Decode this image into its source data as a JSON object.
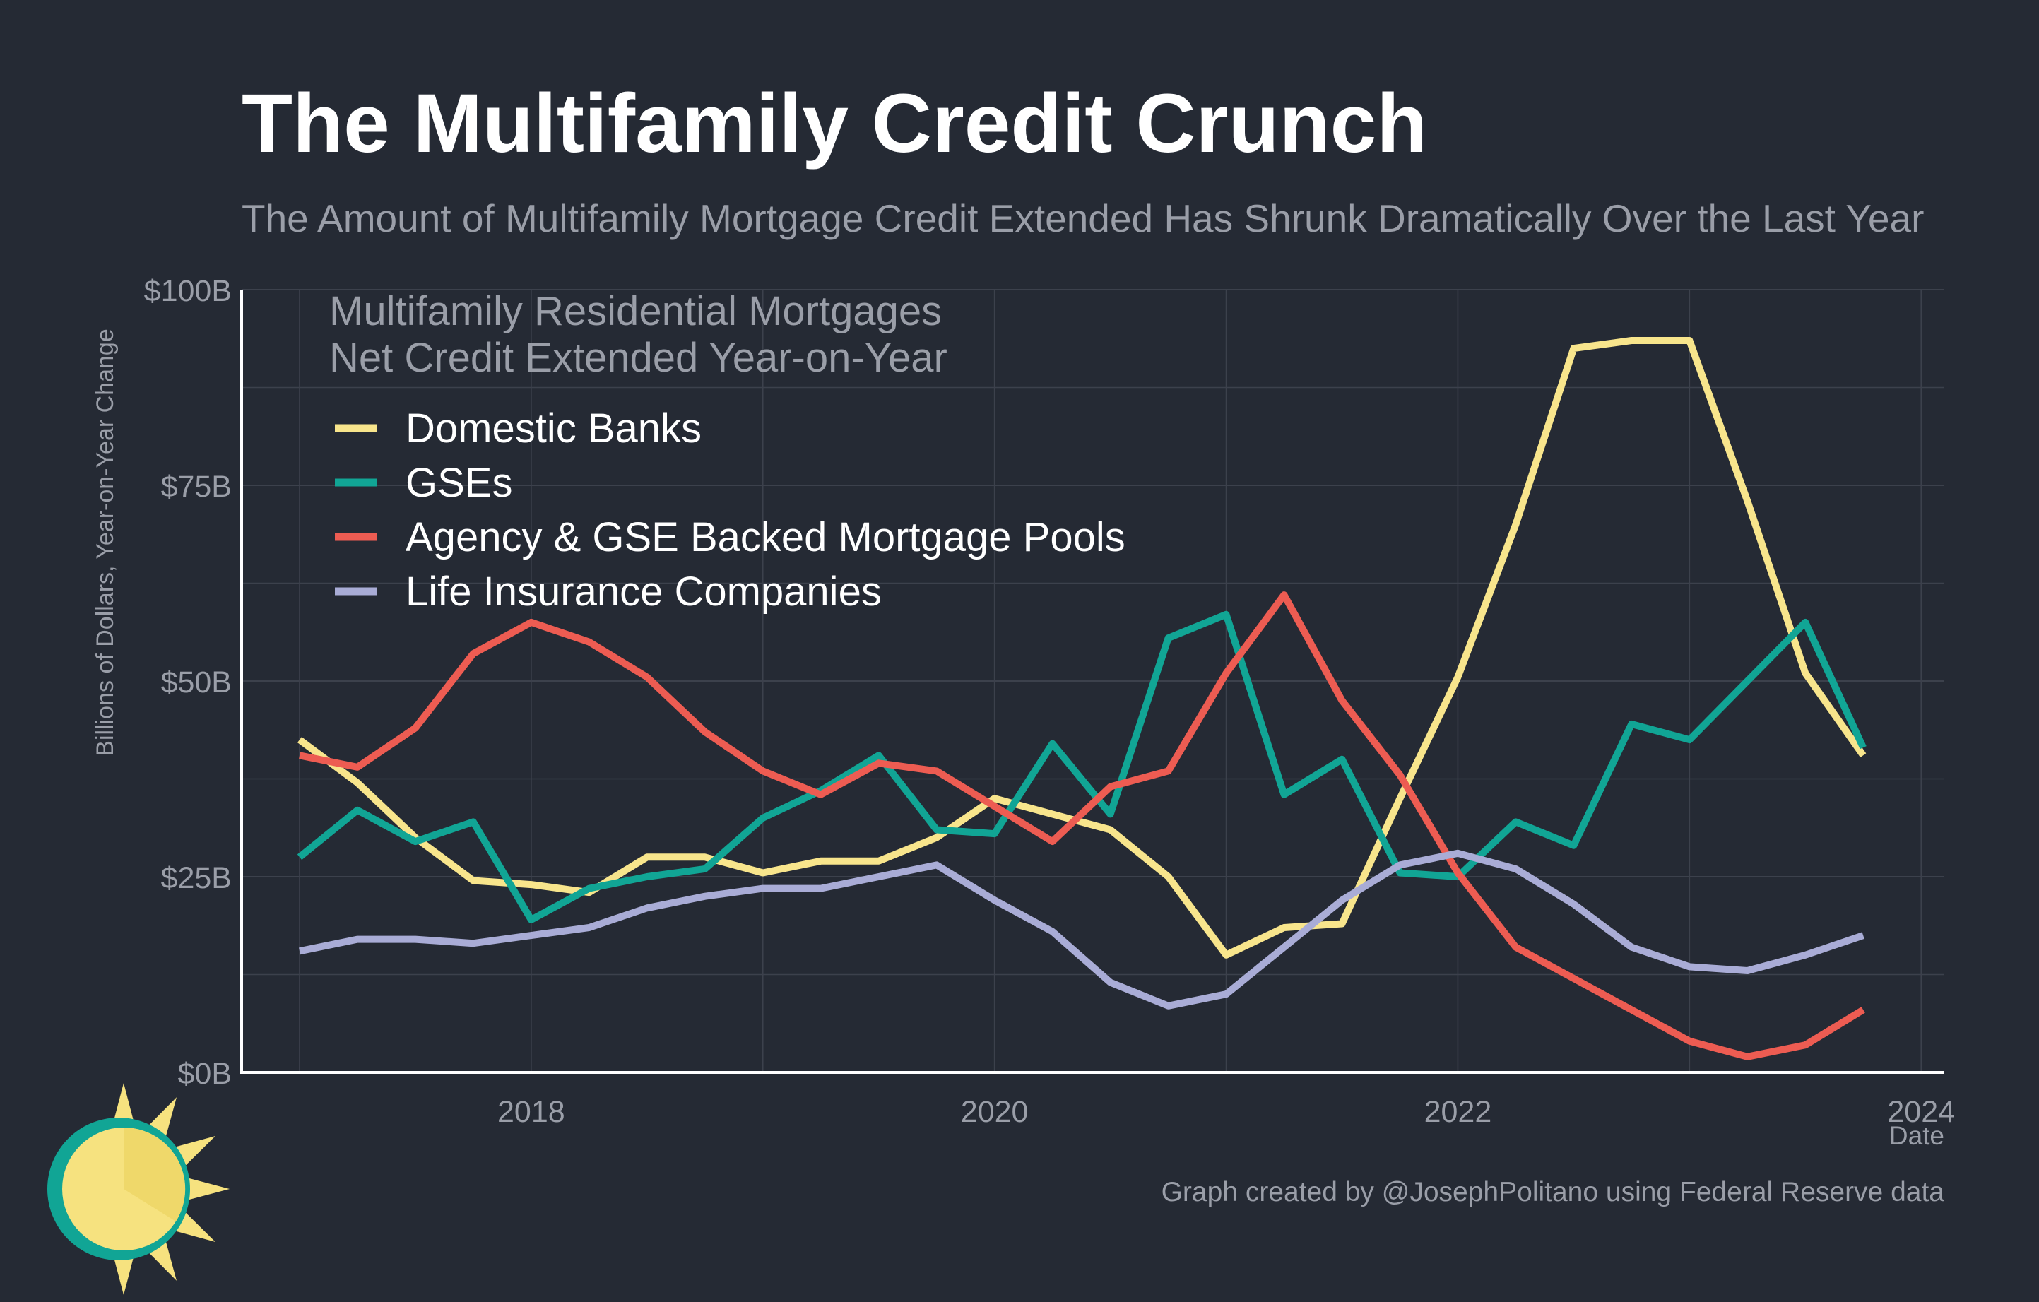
{
  "title": "The Multifamily Credit Crunch",
  "subtitle": "The Amount of Multifamily Mortgage Credit Extended Has Shrunk Dramatically Over the Last Year",
  "caption": "Graph created by @JosephPolitano using Federal Reserve data",
  "colors": {
    "background": "#252a34",
    "grid": "#3c414c",
    "axis": "#ffffff",
    "logo_sun": "#f6e27f",
    "logo_ring": "#11a595"
  },
  "chart_data": {
    "type": "line",
    "legend_title": [
      "Multifamily Residential Mortgages",
      "Net Credit Extended Year-on-Year"
    ],
    "legend_position": "top-left",
    "xlabel": "Date",
    "ylabel": "Billions of Dollars, Year-on-Year Change",
    "xlim": [
      2016.75,
      2024.1
    ],
    "ylim": [
      0,
      100
    ],
    "x_ticks": [
      2018,
      2020,
      2022,
      2024
    ],
    "x_tick_labels": [
      "2018",
      "2020",
      "2022",
      "2024"
    ],
    "y_ticks": [
      0,
      25,
      50,
      75,
      100
    ],
    "y_tick_labels": [
      "$0B",
      "$25B",
      "$50B",
      "$75B",
      "$100B"
    ],
    "grid": true,
    "x": [
      2017.0,
      2017.25,
      2017.5,
      2017.75,
      2018.0,
      2018.25,
      2018.5,
      2018.75,
      2019.0,
      2019.25,
      2019.5,
      2019.75,
      2020.0,
      2020.25,
      2020.5,
      2020.75,
      2021.0,
      2021.25,
      2021.5,
      2021.75,
      2022.0,
      2022.25,
      2022.5,
      2022.75,
      2023.0,
      2023.25,
      2023.5,
      2023.75
    ],
    "series": [
      {
        "name": "Domestic Banks",
        "color": "#f8e58c",
        "values": [
          42.5,
          37,
          30,
          24.5,
          24,
          23,
          27.5,
          27.5,
          25.5,
          27,
          27,
          30,
          35,
          33,
          31,
          25,
          15,
          18.5,
          19,
          35,
          50.5,
          70,
          92.5,
          93.5,
          93.5,
          73,
          51,
          40.5
        ]
      },
      {
        "name": "GSEs",
        "color": "#11a595",
        "values": [
          27.5,
          33.5,
          29.5,
          32,
          19.5,
          23.5,
          25,
          26,
          32.5,
          36,
          40.5,
          31,
          30.5,
          42,
          33,
          55.5,
          58.5,
          35.5,
          40,
          25.5,
          25,
          32,
          29,
          44.5,
          42.5,
          50,
          57.5,
          41.5
        ]
      },
      {
        "name": "Agency & GSE Backed Mortgage Pools",
        "color": "#ed5c52",
        "values": [
          40.5,
          39,
          44,
          53.5,
          57.5,
          55,
          50.5,
          43.5,
          38.5,
          35.5,
          39.5,
          38.5,
          34,
          29.5,
          36.5,
          38.5,
          51,
          61,
          47.5,
          38,
          25.5,
          16,
          12,
          8,
          4,
          2,
          3.5,
          8
        ]
      },
      {
        "name": "Life Insurance Companies",
        "color": "#a9acd6",
        "values": [
          15.5,
          17,
          17,
          16.5,
          17.5,
          18.5,
          21,
          22.5,
          23.5,
          23.5,
          25,
          26.5,
          22,
          18,
          11.5,
          8.5,
          10,
          16,
          22,
          26.5,
          28,
          26,
          21.5,
          16,
          13.5,
          13,
          15,
          17.5
        ]
      }
    ]
  }
}
